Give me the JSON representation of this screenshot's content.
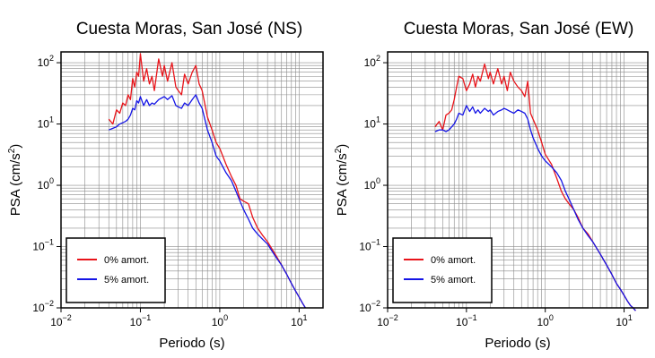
{
  "colors": {
    "series_0": "#e8141a",
    "series_5": "#1414e6",
    "grid": "#8a8a8a",
    "frame": "#000000"
  },
  "chart_data": [
    {
      "type": "line",
      "title": "Cuesta Moras, San José (NS)",
      "xlabel": "Periodo (s)",
      "ylabel": {
        "text": "PSA (cm/s",
        "sup": "2",
        "close": ")"
      },
      "xscale": "log",
      "yscale": "log",
      "xlim": [
        0.01,
        20
      ],
      "ylim": [
        0.01,
        150
      ],
      "grid": true,
      "legend_position": "bottom-left",
      "x_ticks": [
        {
          "base": "10",
          "exp": "−2"
        },
        {
          "base": "10",
          "exp": "−1"
        },
        {
          "base": "10",
          "exp": "0"
        },
        {
          "base": "10",
          "exp": "1"
        }
      ],
      "y_ticks": [
        {
          "base": "10",
          "exp": "−2"
        },
        {
          "base": "10",
          "exp": "−1"
        },
        {
          "base": "10",
          "exp": "0"
        },
        {
          "base": "10",
          "exp": "1"
        },
        {
          "base": "10",
          "exp": "2"
        }
      ],
      "series": [
        {
          "name": "0% amort.",
          "color": "#e8141a",
          "x": [
            0.04,
            0.045,
            0.05,
            0.055,
            0.06,
            0.065,
            0.07,
            0.075,
            0.08,
            0.085,
            0.09,
            0.095,
            0.1,
            0.11,
            0.12,
            0.13,
            0.14,
            0.15,
            0.17,
            0.19,
            0.2,
            0.22,
            0.25,
            0.28,
            0.3,
            0.33,
            0.36,
            0.4,
            0.45,
            0.5,
            0.55,
            0.6,
            0.7,
            0.8,
            0.9,
            1.0,
            1.2,
            1.4,
            1.6,
            1.8,
            2.0,
            2.3,
            2.6,
            3.0,
            3.5,
            4.0,
            5.0,
            6.0,
            7.0,
            8.0,
            9.0,
            10.0,
            11.0,
            12.0
          ],
          "y": [
            12,
            10,
            17,
            15,
            22,
            20,
            30,
            25,
            55,
            40,
            70,
            60,
            140,
            50,
            80,
            45,
            60,
            35,
            115,
            60,
            90,
            50,
            100,
            40,
            35,
            30,
            65,
            45,
            70,
            90,
            45,
            35,
            13,
            8,
            5,
            4,
            2.2,
            1.4,
            1.0,
            0.6,
            0.55,
            0.5,
            0.3,
            0.2,
            0.15,
            0.12,
            0.075,
            0.05,
            0.035,
            0.025,
            0.019,
            0.015,
            0.012,
            0.01
          ]
        },
        {
          "name": "5% amort.",
          "color": "#1414e6",
          "x": [
            0.04,
            0.045,
            0.05,
            0.055,
            0.06,
            0.065,
            0.07,
            0.075,
            0.08,
            0.085,
            0.09,
            0.095,
            0.1,
            0.11,
            0.12,
            0.13,
            0.14,
            0.15,
            0.17,
            0.19,
            0.2,
            0.22,
            0.25,
            0.28,
            0.3,
            0.33,
            0.36,
            0.4,
            0.45,
            0.5,
            0.55,
            0.6,
            0.7,
            0.8,
            0.9,
            1.0,
            1.2,
            1.4,
            1.6,
            1.8,
            2.0,
            2.3,
            2.6,
            3.0,
            3.5,
            4.0,
            5.0,
            6.0,
            7.0,
            8.0,
            9.0,
            10.0,
            11.0,
            12.0
          ],
          "y": [
            8,
            8.5,
            9,
            10,
            10.5,
            11,
            12,
            14,
            18,
            17,
            24,
            22,
            28,
            20,
            25,
            20,
            22,
            21,
            25,
            27,
            28,
            25,
            29,
            20,
            19,
            18,
            22,
            20,
            25,
            30,
            22,
            18,
            8,
            5,
            3,
            2.5,
            1.6,
            1.2,
            0.8,
            0.55,
            0.4,
            0.28,
            0.2,
            0.16,
            0.13,
            0.11,
            0.07,
            0.05,
            0.035,
            0.025,
            0.019,
            0.015,
            0.012,
            0.01
          ]
        }
      ]
    },
    {
      "type": "line",
      "title": "Cuesta Moras, San José (EW)",
      "xlabel": "Periodo (s)",
      "ylabel": {
        "text": "PSA (cm/s",
        "sup": "2",
        "close": ")"
      },
      "xscale": "log",
      "yscale": "log",
      "xlim": [
        0.01,
        20
      ],
      "ylim": [
        0.01,
        150
      ],
      "grid": true,
      "legend_position": "bottom-left",
      "x_ticks": [
        {
          "base": "10",
          "exp": "−2"
        },
        {
          "base": "10",
          "exp": "−1"
        },
        {
          "base": "10",
          "exp": "0"
        },
        {
          "base": "10",
          "exp": "1"
        }
      ],
      "y_ticks": [
        {
          "base": "10",
          "exp": "−2"
        },
        {
          "base": "10",
          "exp": "−1"
        },
        {
          "base": "10",
          "exp": "0"
        },
        {
          "base": "10",
          "exp": "1"
        },
        {
          "base": "10",
          "exp": "2"
        }
      ],
      "series": [
        {
          "name": "0% amort.",
          "color": "#e8141a",
          "x": [
            0.04,
            0.045,
            0.05,
            0.055,
            0.06,
            0.065,
            0.07,
            0.075,
            0.08,
            0.09,
            0.1,
            0.11,
            0.12,
            0.13,
            0.14,
            0.15,
            0.17,
            0.19,
            0.2,
            0.22,
            0.25,
            0.28,
            0.3,
            0.33,
            0.36,
            0.4,
            0.45,
            0.5,
            0.55,
            0.6,
            0.65,
            0.7,
            0.8,
            0.9,
            1.0,
            1.2,
            1.4,
            1.6,
            1.8,
            2.0,
            2.3,
            2.6,
            3.0,
            3.5,
            4.0,
            5.0,
            6.0,
            7.0,
            8.0,
            9.0,
            10.0,
            11.0,
            12.0,
            13.0,
            14.0
          ],
          "y": [
            9,
            11,
            8,
            14,
            15,
            17,
            25,
            40,
            60,
            55,
            35,
            45,
            65,
            40,
            60,
            50,
            95,
            55,
            70,
            45,
            80,
            45,
            60,
            35,
            70,
            50,
            40,
            35,
            28,
            50,
            15,
            12,
            8,
            5,
            3.2,
            2.2,
            1.3,
            0.8,
            0.6,
            0.5,
            0.4,
            0.3,
            0.2,
            0.16,
            0.12,
            0.075,
            0.05,
            0.035,
            0.025,
            0.02,
            0.016,
            0.013,
            0.011,
            0.01,
            0.009
          ]
        },
        {
          "name": "5% amort.",
          "color": "#1414e6",
          "x": [
            0.04,
            0.045,
            0.05,
            0.055,
            0.06,
            0.065,
            0.07,
            0.075,
            0.08,
            0.09,
            0.1,
            0.11,
            0.12,
            0.13,
            0.14,
            0.15,
            0.17,
            0.19,
            0.2,
            0.22,
            0.25,
            0.28,
            0.3,
            0.33,
            0.36,
            0.4,
            0.45,
            0.5,
            0.55,
            0.6,
            0.65,
            0.7,
            0.8,
            0.9,
            1.0,
            1.2,
            1.4,
            1.6,
            1.8,
            2.0,
            2.3,
            2.6,
            3.0,
            3.5,
            4.0,
            5.0,
            6.0,
            7.0,
            8.0,
            9.0,
            10.0,
            11.0,
            12.0,
            13.0,
            14.0
          ],
          "y": [
            7.5,
            8,
            8,
            7.5,
            8,
            9,
            10,
            12,
            15,
            14,
            20,
            16,
            19,
            15,
            17,
            15,
            18,
            16,
            17,
            14,
            16,
            17,
            18,
            17,
            16,
            15,
            17,
            16,
            15,
            12,
            8,
            6,
            4,
            3,
            2.5,
            2,
            1.6,
            1.2,
            0.8,
            0.6,
            0.4,
            0.28,
            0.2,
            0.15,
            0.12,
            0.075,
            0.05,
            0.035,
            0.025,
            0.02,
            0.016,
            0.013,
            0.011,
            0.01,
            0.009
          ]
        }
      ]
    }
  ]
}
